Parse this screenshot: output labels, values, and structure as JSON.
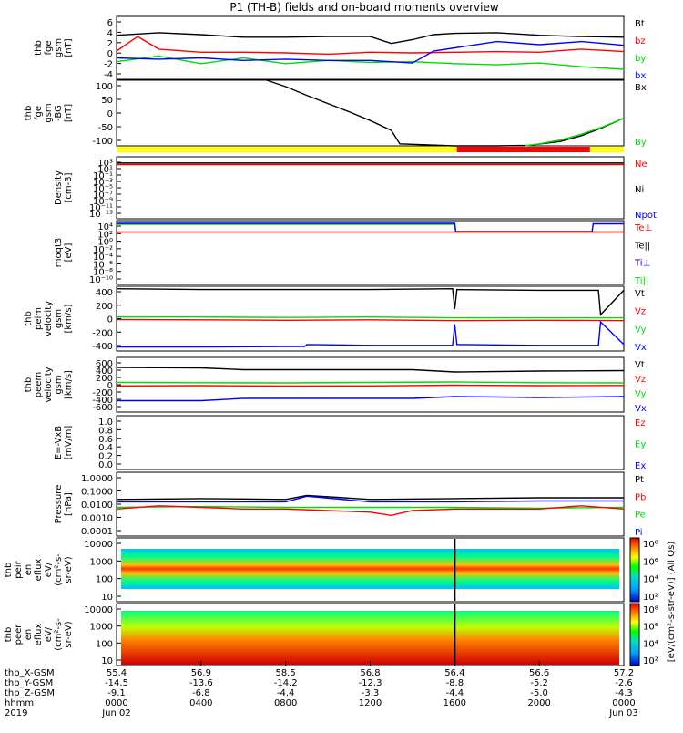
{
  "title": "P1 (TH-B) fields and on-board moments overview",
  "colors": {
    "black": "#000000",
    "red": "#ff0000",
    "green": "#00dd00",
    "blue": "#0000ff",
    "yellow": "#ffff00"
  },
  "chart_data": {
    "type": "line",
    "title": "P1 (TH-B) fields and on-board moments overview",
    "x_ticks": [
      {
        "t": 0,
        "row1": "55.4",
        "row2": "-14.5",
        "row3": "-9.1",
        "row4": "0000",
        "date": "Jun 02"
      },
      {
        "t": 4,
        "row1": "56.9",
        "row2": "-13.6",
        "row3": "-6.8",
        "row4": "0400",
        "date": ""
      },
      {
        "t": 8,
        "row1": "58.5",
        "row2": "-14.2",
        "row3": "-4.4",
        "row4": "0800",
        "date": ""
      },
      {
        "t": 12,
        "row1": "56.8",
        "row2": "-12.3",
        "row3": "-3.3",
        "row4": "1200",
        "date": ""
      },
      {
        "t": 16,
        "row1": "56.4",
        "row2": "-8.8",
        "row3": "-4.4",
        "row4": "1600",
        "date": ""
      },
      {
        "t": 20,
        "row1": "56.6",
        "row2": "-5.2",
        "row3": "-5.0",
        "row4": "2000",
        "date": ""
      },
      {
        "t": 24,
        "row1": "57.2",
        "row2": "-2.6",
        "row3": "-4.3",
        "row4": "0000",
        "date": "Jun 03"
      }
    ],
    "x_row_labels": [
      "thb_X-GSM",
      "thb_Y-GSM",
      "thb_Z-GSM",
      "hhmm"
    ],
    "year": "2019",
    "panels": [
      {
        "ylabel": [
          "thb",
          "fge",
          "gsm",
          "[nT]"
        ],
        "yticks": [
          "6",
          "4",
          "2",
          "0",
          "-2",
          "-4"
        ],
        "ylim": [
          -4,
          6
        ],
        "legend": [
          {
            "name": "Bt",
            "color": "black"
          },
          {
            "name": "bz",
            "color": "red"
          },
          {
            "name": "by",
            "color": "green"
          },
          {
            "name": "bx",
            "color": "blue"
          }
        ],
        "series": [
          {
            "name": "Bt",
            "color": "black",
            "x": [
              0,
              2,
              4,
              6,
              8,
              10,
              12,
              13,
              14,
              15,
              16,
              18,
              20,
              22,
              24
            ],
            "y": [
              3.0,
              3.4,
              3.1,
              2.7,
              2.7,
              2.8,
              2.8,
              1.7,
              2.3,
              3.1,
              3.3,
              3.4,
              3.0,
              2.8,
              2.7
            ]
          },
          {
            "name": "bz",
            "color": "red",
            "x": [
              0,
              1,
              2,
              4,
              6,
              8,
              10,
              12,
              14,
              16,
              18,
              20,
              22,
              24
            ],
            "y": [
              0.5,
              2.8,
              0.8,
              0.3,
              0.3,
              0.2,
              0.0,
              0.3,
              0.2,
              0.3,
              0.4,
              0.3,
              0.8,
              0.4
            ]
          },
          {
            "name": "by",
            "color": "green",
            "x": [
              0,
              2,
              4,
              6,
              8,
              10,
              12,
              14,
              16,
              18,
              20,
              22,
              24
            ],
            "y": [
              -1.2,
              -0.3,
              -1.5,
              -0.6,
              -1.5,
              -1.0,
              -1.3,
              -1.2,
              -1.5,
              -1.7,
              -1.4,
              -2.0,
              -2.4
            ]
          },
          {
            "name": "bx",
            "color": "blue",
            "x": [
              0,
              2,
              4,
              6,
              8,
              10,
              12,
              14,
              15,
              16,
              18,
              20,
              22,
              24
            ],
            "y": [
              -0.6,
              -0.8,
              -0.6,
              -1.0,
              -0.8,
              -1.0,
              -1.0,
              -1.4,
              0.5,
              1.0,
              2.0,
              1.5,
              2.0,
              1.4
            ]
          }
        ]
      },
      {
        "ylabel": [
          "thb",
          "fge",
          "gsm",
          "-BG",
          "[nT]"
        ],
        "yticks": [
          "100",
          "50",
          "0",
          "-50",
          "-100"
        ],
        "ylim": [
          -125,
          100
        ],
        "legend": [
          {
            "name": "Bx",
            "color": "black"
          },
          {
            "name": "By",
            "color": "green"
          }
        ],
        "series": [
          {
            "name": "Bx",
            "color": "black",
            "x": [
              7.1,
              8,
              9,
              10,
              11,
              12,
              13,
              13.4,
              16,
              18,
              19.5,
              21,
              22,
              23,
              24
            ],
            "y": [
              100,
              78,
              48,
              20,
              -8,
              -38,
              -72,
              -118,
              -125,
              -125,
              -123,
              -110,
              -90,
              -62,
              -30
            ]
          },
          {
            "name": "By",
            "color": "green",
            "x": [
              19.3,
              20,
              21,
              22,
              23,
              24
            ],
            "y": [
              -125,
              -118,
              -105,
              -85,
              -60,
              -30
            ]
          }
        ]
      },
      {
        "type": "status-bar",
        "segments": [
          {
            "from": 0,
            "to": 16.1,
            "color": "yellow"
          },
          {
            "from": 16.1,
            "to": 22.4,
            "color": "red"
          },
          {
            "from": 22.4,
            "to": 24,
            "color": "yellow"
          }
        ]
      },
      {
        "ylabel": [
          "Density",
          "[cm-3]"
        ],
        "yticks": [
          "10³",
          "10¹",
          "10⁻¹",
          "10⁻³",
          "10⁻⁵",
          "10⁻⁷",
          "10⁻⁹",
          "10⁻¹¹",
          "10⁻¹³"
        ],
        "ylim": [
          -13,
          3
        ],
        "log": true,
        "legend": [
          {
            "name": "Ne",
            "color": "red"
          },
          {
            "name": "Ni",
            "color": "black"
          },
          {
            "name": "Npot",
            "color": "blue"
          }
        ],
        "series": [
          {
            "name": "Ni",
            "color": "black",
            "x": [
              0,
              24
            ],
            "y": [
              1.4,
              1.4
            ]
          },
          {
            "name": "Ne",
            "color": "red",
            "x": [
              0,
              24
            ],
            "y": [
              1.0,
              1.0
            ]
          }
        ]
      },
      {
        "ylabel": [
          "moqt3",
          "[eV]"
        ],
        "yticks": [
          "10⁴",
          "10²",
          "10⁰",
          "10⁻²",
          "10⁻⁴",
          "10⁻⁶",
          "10⁻⁸",
          "10⁻¹⁰"
        ],
        "ylim": [
          -10,
          4
        ],
        "log": true,
        "legend": [
          {
            "name": "Te⊥",
            "color": "red"
          },
          {
            "name": "Te||",
            "color": "black"
          },
          {
            "name": "Ti⊥",
            "color": "blue"
          },
          {
            "name": "Ti||",
            "color": "green"
          }
        ],
        "series": [
          {
            "name": "Ti||",
            "color": "green",
            "x": [
              0,
              16,
              16.05,
              24
            ],
            "y": [
              3.2,
              3.2,
              1.5,
              1.5
            ]
          },
          {
            "name": "Ti⊥",
            "color": "blue",
            "x": [
              0,
              16,
              16.05,
              22.5,
              22.55,
              24
            ],
            "y": [
              3.4,
              3.4,
              1.6,
              1.6,
              3.3,
              3.3
            ]
          },
          {
            "name": "Te⊥",
            "color": "red",
            "x": [
              0,
              24
            ],
            "y": [
              1.5,
              1.5
            ]
          }
        ]
      },
      {
        "ylabel": [
          "thb",
          "peim",
          "velocity",
          "gsm",
          "[km/s]"
        ],
        "yticks": [
          "400",
          "200",
          "0",
          "-200",
          "-400"
        ],
        "ylim": [
          -400,
          400
        ],
        "legend": [
          {
            "name": "Vt",
            "color": "black"
          },
          {
            "name": "Vz",
            "color": "red"
          },
          {
            "name": "Vy",
            "color": "green"
          },
          {
            "name": "Vx",
            "color": "blue"
          }
        ],
        "series": [
          {
            "name": "Vt",
            "color": "black",
            "x": [
              0,
              4,
              8,
              12,
              15.9,
              16,
              16.1,
              20,
              22.8,
              22.9,
              24
            ],
            "y": [
              370,
              360,
              360,
              360,
              370,
              120,
              360,
              350,
              350,
              50,
              350
            ]
          },
          {
            "name": "Vz",
            "color": "red",
            "x": [
              0,
              4,
              8,
              12,
              16,
              20,
              24
            ],
            "y": [
              -10,
              -15,
              -20,
              -15,
              -25,
              -20,
              -25
            ]
          },
          {
            "name": "Vy",
            "color": "green",
            "x": [
              0,
              4,
              8,
              12,
              16,
              20,
              24
            ],
            "y": [
              20,
              20,
              15,
              20,
              10,
              10,
              10
            ]
          },
          {
            "name": "Vx",
            "color": "blue",
            "x": [
              0,
              4,
              8,
              8.9,
              9,
              12,
              15.9,
              16,
              16.1,
              20,
              22.8,
              22.9,
              24
            ],
            "y": [
              -350,
              -350,
              -345,
              -345,
              -320,
              -330,
              -330,
              -70,
              -320,
              -330,
              -330,
              -40,
              -320
            ]
          }
        ]
      },
      {
        "ylabel": [
          "thb",
          "peem",
          "velocity",
          "gsm",
          "[km/s]"
        ],
        "yticks": [
          "600",
          "400",
          "200",
          "0",
          "-200",
          "-400",
          "-600"
        ],
        "ylim": [
          -600,
          600
        ],
        "legend": [
          {
            "name": "Vt",
            "color": "black"
          },
          {
            "name": "Vz",
            "color": "red"
          },
          {
            "name": "Vy",
            "color": "green"
          },
          {
            "name": "Vx",
            "color": "blue"
          }
        ],
        "series": [
          {
            "name": "Vt",
            "color": "black",
            "x": [
              0,
              4,
              6,
              10,
              14,
              16,
              20,
              24
            ],
            "y": [
              380,
              370,
              330,
              330,
              330,
              280,
              300,
              310
            ]
          },
          {
            "name": "Vz",
            "color": "red",
            "x": [
              0,
              4,
              8,
              12,
              16,
              20,
              24
            ],
            "y": [
              -25,
              -20,
              -30,
              -25,
              -10,
              -20,
              -15
            ]
          },
          {
            "name": "Vy",
            "color": "green",
            "x": [
              0,
              4,
              8,
              12,
              16,
              20,
              24
            ],
            "y": [
              50,
              45,
              40,
              50,
              60,
              45,
              40
            ]
          },
          {
            "name": "Vx",
            "color": "blue",
            "x": [
              0,
              4,
              6,
              10,
              14,
              16,
              20,
              24
            ],
            "y": [
              -350,
              -350,
              -300,
              -300,
              -300,
              -260,
              -280,
              -260
            ]
          }
        ]
      },
      {
        "ylabel": [
          "E=-VxB",
          "[mV/m]"
        ],
        "yticks": [
          "1.0",
          "0.8",
          "0.6",
          "0.4",
          "0.2",
          "0.0"
        ],
        "ylim": [
          0,
          1
        ],
        "legend": [
          {
            "name": "Ez",
            "color": "red"
          },
          {
            "name": "Ey",
            "color": "green"
          },
          {
            "name": "Ex",
            "color": "blue"
          }
        ],
        "series": []
      },
      {
        "ylabel": [
          "Pressure",
          "[nPa]"
        ],
        "yticks": [
          "1.0000",
          "0.1000",
          "0.0100",
          "0.0010",
          "0.0001"
        ],
        "ylim": [
          -4,
          0
        ],
        "log": true,
        "legend": [
          {
            "name": "Pt",
            "color": "black"
          },
          {
            "name": "Pb",
            "color": "red"
          },
          {
            "name": "Pe",
            "color": "green"
          },
          {
            "name": "Pi",
            "color": "blue"
          }
        ],
        "series": [
          {
            "name": "Pt",
            "color": "black",
            "x": [
              0,
              4,
              8,
              9,
              12,
              16,
              20,
              24
            ],
            "y": [
              -1.7,
              -1.65,
              -1.7,
              -1.45,
              -1.7,
              -1.65,
              -1.6,
              -1.6
            ]
          },
          {
            "name": "Pi",
            "color": "blue",
            "x": [
              0,
              4,
              8,
              9,
              12,
              16,
              20,
              24
            ],
            "y": [
              -1.85,
              -1.85,
              -1.85,
              -1.5,
              -1.85,
              -1.85,
              -1.8,
              -1.8
            ]
          },
          {
            "name": "Pe",
            "color": "green",
            "x": [
              0,
              4,
              8,
              12,
              16,
              20,
              24
            ],
            "y": [
              -2.2,
              -2.15,
              -2.2,
              -2.2,
              -2.2,
              -2.25,
              -2.2
            ]
          },
          {
            "name": "Pb",
            "color": "red",
            "x": [
              0,
              2,
              4,
              6,
              8,
              10,
              12,
              13,
              14,
              16,
              18,
              20,
              22,
              24
            ],
            "y": [
              -2.3,
              -2.1,
              -2.2,
              -2.3,
              -2.3,
              -2.4,
              -2.5,
              -2.7,
              -2.4,
              -2.3,
              -2.3,
              -2.3,
              -2.1,
              -2.3
            ]
          }
        ]
      },
      {
        "type": "spectrogram",
        "ylabel": [
          "thb",
          "peir",
          "en",
          "eflux",
          "eV/",
          "(cm²-s-",
          "sr-eV)"
        ],
        "yticks": [
          "10000",
          "1000",
          "100",
          "10"
        ]
      },
      {
        "type": "spectrogram",
        "ylabel": [
          "thb",
          "peer",
          "en",
          "eflux",
          "eV/",
          "(cm²-s-",
          "sr-eV)"
        ],
        "yticks": [
          "10000",
          "1000",
          "100",
          "10"
        ]
      }
    ],
    "colorbars": [
      {
        "ticks": [
          "10⁸",
          "10⁶",
          "10⁴",
          "10²"
        ],
        "label": "[eV/(cm²-s-str-eV)] (All Qs)"
      },
      {
        "ticks": [
          "10⁸",
          "10⁶",
          "10⁴",
          "10²"
        ],
        "label": ""
      }
    ]
  }
}
